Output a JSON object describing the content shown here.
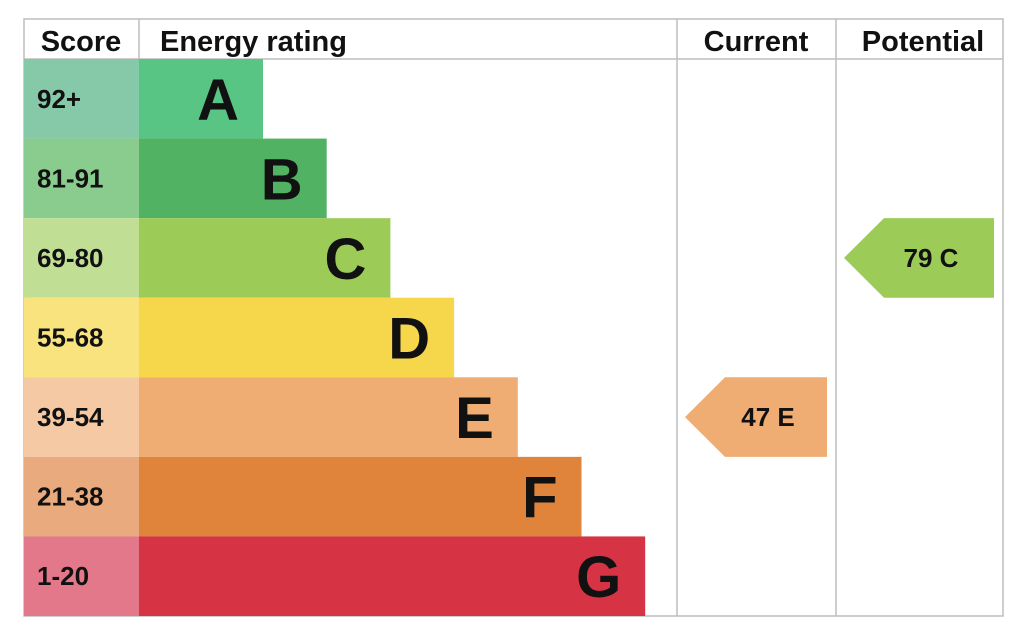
{
  "headers": {
    "score": "Score",
    "rating": "Energy rating",
    "current": "Current",
    "potential": "Potential"
  },
  "chart_data": {
    "type": "bar",
    "bands": [
      {
        "letter": "A",
        "range": "92+",
        "color": "#58c585",
        "score_bg": "#86c9a8"
      },
      {
        "letter": "B",
        "range": "81-91",
        "color": "#52b263",
        "score_bg": "#8acb8e"
      },
      {
        "letter": "C",
        "range": "69-80",
        "color": "#9ccb58",
        "score_bg": "#c0df95"
      },
      {
        "letter": "D",
        "range": "55-68",
        "color": "#f6d64b",
        "score_bg": "#f8e37e"
      },
      {
        "letter": "E",
        "range": "39-54",
        "color": "#efac73",
        "score_bg": "#f4c9a4"
      },
      {
        "letter": "F",
        "range": "21-38",
        "color": "#e0833b",
        "score_bg": "#e9ab7d"
      },
      {
        "letter": "G",
        "range": "1-20",
        "color": "#d63444",
        "score_bg": "#e3788a"
      }
    ],
    "current": {
      "value": 47,
      "band": "E",
      "label": "47  E",
      "color": "#efac73"
    },
    "potential": {
      "value": 79,
      "band": "C",
      "label": "79  C",
      "color": "#9ccb58"
    }
  }
}
